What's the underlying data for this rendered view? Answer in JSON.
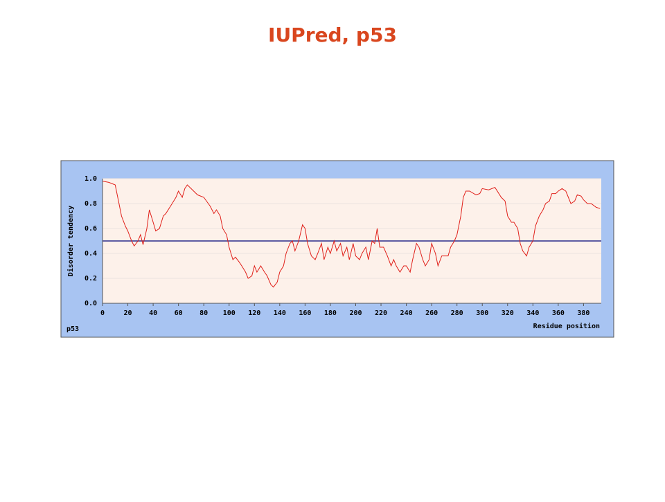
{
  "chart_data": {
    "type": "line",
    "title": "IUPred, p53",
    "ylabel": "Disorder tendency",
    "xlabel": "Residue position",
    "label": "p53",
    "x": [
      0,
      5,
      10,
      13,
      15,
      18,
      20,
      23,
      25,
      28,
      30,
      32,
      35,
      37,
      40,
      42,
      45,
      48,
      50,
      55,
      58,
      60,
      63,
      65,
      67,
      70,
      75,
      80,
      85,
      88,
      90,
      93,
      95,
      98,
      100,
      103,
      105,
      108,
      110,
      113,
      115,
      118,
      120,
      122,
      125,
      128,
      130,
      133,
      135,
      138,
      140,
      143,
      145,
      148,
      150,
      152,
      155,
      158,
      160,
      162,
      165,
      168,
      170,
      173,
      175,
      178,
      180,
      183,
      185,
      188,
      190,
      193,
      195,
      198,
      200,
      203,
      205,
      208,
      210,
      213,
      215,
      217,
      219,
      222,
      225,
      228,
      230,
      232,
      235,
      238,
      240,
      243,
      245,
      248,
      250,
      253,
      255,
      258,
      260,
      263,
      265,
      268,
      270,
      273,
      275,
      278,
      280,
      283,
      285,
      287,
      290,
      295,
      298,
      300,
      305,
      310,
      315,
      318,
      320,
      323,
      325,
      328,
      330,
      332,
      335,
      337,
      340,
      342,
      345,
      348,
      350,
      353,
      355,
      358,
      360,
      363,
      366,
      368,
      370,
      373,
      375,
      378,
      380,
      383,
      386,
      390,
      393
    ],
    "series": [
      {
        "color": "#e0201a",
        "values": [
          0.98,
          0.97,
          0.95,
          0.8,
          0.7,
          0.62,
          0.58,
          0.5,
          0.46,
          0.5,
          0.55,
          0.47,
          0.6,
          0.75,
          0.65,
          0.58,
          0.6,
          0.7,
          0.72,
          0.8,
          0.85,
          0.9,
          0.85,
          0.92,
          0.95,
          0.92,
          0.87,
          0.85,
          0.78,
          0.72,
          0.75,
          0.7,
          0.6,
          0.55,
          0.45,
          0.35,
          0.37,
          0.33,
          0.3,
          0.25,
          0.2,
          0.22,
          0.3,
          0.25,
          0.3,
          0.25,
          0.22,
          0.15,
          0.13,
          0.17,
          0.25,
          0.3,
          0.4,
          0.48,
          0.5,
          0.42,
          0.5,
          0.63,
          0.6,
          0.48,
          0.38,
          0.35,
          0.4,
          0.48,
          0.35,
          0.45,
          0.4,
          0.5,
          0.42,
          0.48,
          0.38,
          0.45,
          0.35,
          0.48,
          0.38,
          0.35,
          0.4,
          0.45,
          0.35,
          0.5,
          0.48,
          0.6,
          0.45,
          0.45,
          0.38,
          0.3,
          0.35,
          0.3,
          0.25,
          0.3,
          0.3,
          0.25,
          0.35,
          0.48,
          0.45,
          0.35,
          0.3,
          0.35,
          0.48,
          0.4,
          0.3,
          0.38,
          0.38,
          0.38,
          0.45,
          0.5,
          0.55,
          0.7,
          0.85,
          0.9,
          0.9,
          0.87,
          0.88,
          0.92,
          0.91,
          0.93,
          0.85,
          0.82,
          0.7,
          0.65,
          0.65,
          0.6,
          0.48,
          0.42,
          0.38,
          0.45,
          0.5,
          0.62,
          0.7,
          0.75,
          0.8,
          0.82,
          0.88,
          0.88,
          0.9,
          0.92,
          0.9,
          0.85,
          0.8,
          0.82,
          0.87,
          0.86,
          0.83,
          0.8,
          0.8,
          0.77,
          0.76
        ]
      }
    ],
    "threshold": 0.5,
    "threshold_color": "#2a2a8a",
    "xlim": [
      0,
      394
    ],
    "ylim": [
      0,
      1
    ],
    "xticks": [
      0,
      20,
      40,
      60,
      80,
      100,
      120,
      140,
      160,
      180,
      200,
      220,
      240,
      260,
      280,
      300,
      320,
      340,
      360,
      380
    ],
    "yticks": [
      {
        "value": 0,
        "label": "0.0"
      },
      0.2,
      0.4,
      0.6,
      0.8,
      {
        "value": 1,
        "label": "1.0"
      }
    ],
    "grid": true
  }
}
